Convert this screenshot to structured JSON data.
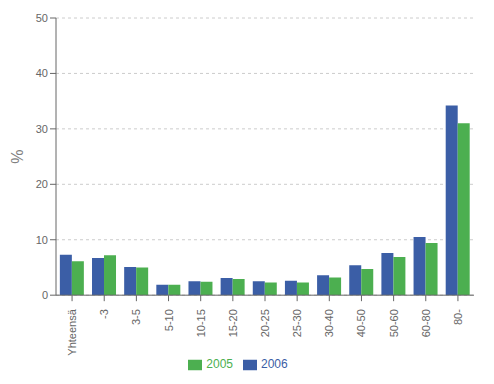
{
  "chart_data": {
    "type": "bar",
    "categories": [
      "Yhteensä",
      "-3",
      "3-5",
      "5-10",
      "10-15",
      "15-20",
      "20-25",
      "25-30",
      "30-40",
      "40-50",
      "50-60",
      "60-80",
      "80-"
    ],
    "series": [
      {
        "name": "2006",
        "color": "#3B5EA6",
        "values": [
          7.3,
          6.7,
          5.1,
          1.9,
          2.5,
          3.1,
          2.5,
          2.6,
          3.6,
          5.4,
          7.6,
          10.5,
          34.2
        ]
      },
      {
        "name": "2005",
        "color": "#4CAF50",
        "values": [
          6.1,
          7.2,
          5.0,
          1.9,
          2.4,
          2.9,
          2.3,
          2.3,
          3.2,
          4.7,
          6.9,
          9.4,
          31.0
        ]
      }
    ],
    "ylabel": "%",
    "ylim": [
      0,
      50
    ],
    "yticks": [
      0,
      10,
      20,
      30,
      40,
      50
    ],
    "grid": true,
    "legend": "bottom"
  }
}
